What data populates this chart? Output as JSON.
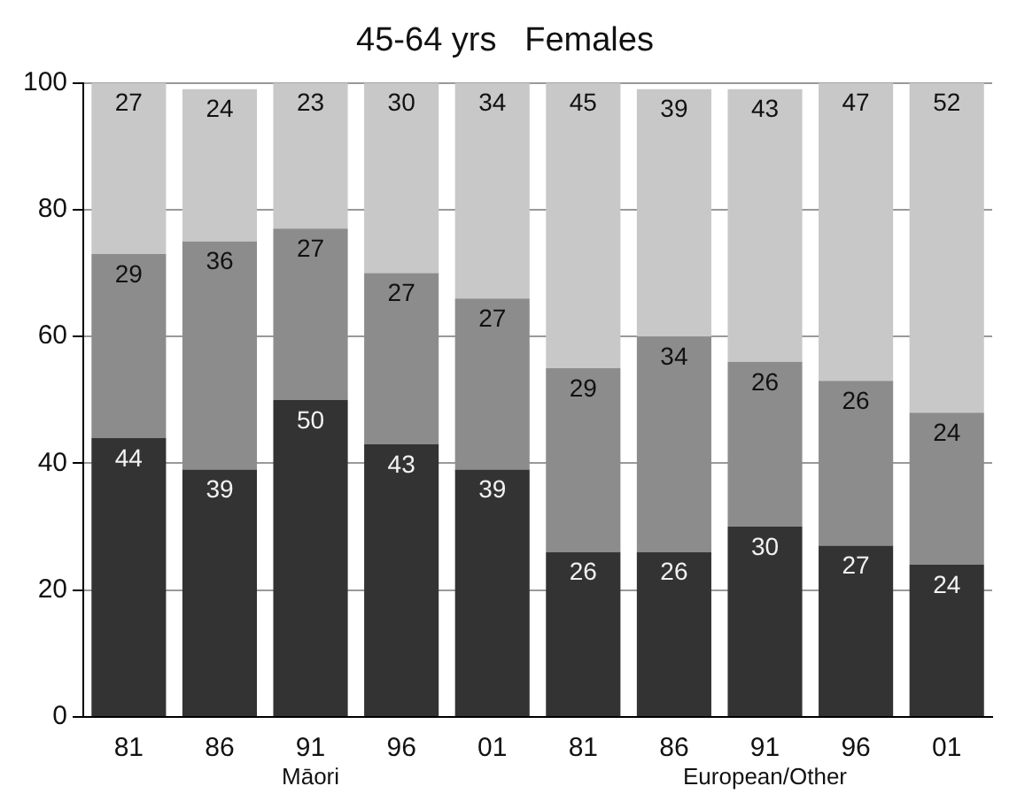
{
  "chart_data": {
    "type": "bar",
    "title": "45-64 yrs   Females",
    "stacked": true,
    "grid": "y",
    "data_labels": true,
    "legend": false,
    "categories": [
      "81",
      "86",
      "91",
      "96",
      "01",
      "81",
      "86",
      "91",
      "96",
      "01"
    ],
    "series": [
      {
        "color": "#333333",
        "values": [
          44,
          39,
          50,
          43,
          39,
          26,
          26,
          30,
          27,
          24
        ]
      },
      {
        "color": "#8c8c8c",
        "values": [
          29,
          36,
          27,
          27,
          27,
          29,
          34,
          26,
          26,
          24
        ]
      },
      {
        "color": "#c8c8c8",
        "values": [
          27,
          24,
          23,
          30,
          34,
          45,
          39,
          43,
          47,
          52
        ]
      }
    ],
    "ylim": [
      0,
      100
    ],
    "yticks": [
      0,
      20,
      40,
      60,
      80,
      100
    ],
    "annotations": [
      "Māori",
      "European/Other"
    ]
  }
}
